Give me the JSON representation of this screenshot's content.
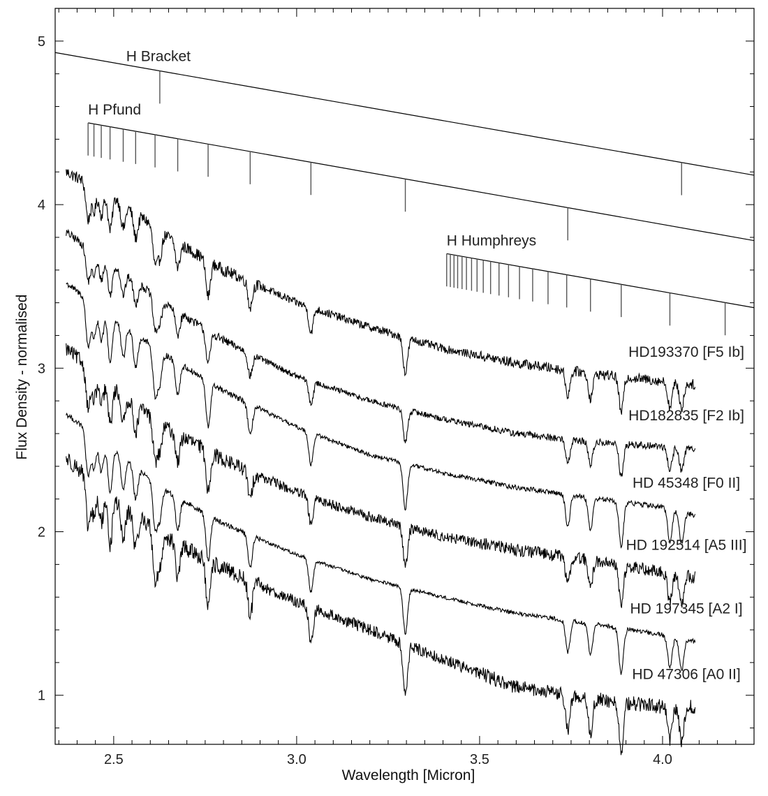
{
  "chart_data": {
    "type": "line",
    "title": "",
    "xlabel": "Wavelength [Micron]",
    "ylabel": "Flux Density - normalised",
    "xlim": [
      2.34,
      4.25
    ],
    "ylim": [
      0.7,
      5.2
    ],
    "xticks": [
      2.5,
      3.0,
      3.5,
      4.0
    ],
    "xtick_labels": [
      "2.5",
      "3.0",
      "3.5",
      "4.0"
    ],
    "yticks": [
      1,
      2,
      3,
      4,
      5
    ],
    "ytick_labels": [
      "1",
      "2",
      "3",
      "4",
      "5"
    ],
    "grid": false,
    "legend": "none",
    "line_color": "#000000",
    "hydrogen_series": [
      {
        "name": "H Bracket",
        "guide": [
          [
            2.34,
            4.93
          ],
          [
            4.25,
            4.18
          ]
        ],
        "lines": [
          2.626,
          4.052
        ],
        "tick_length": 0.2
      },
      {
        "name": "H Pfund",
        "guide": [
          [
            2.43,
            4.5
          ],
          [
            4.25,
            3.78
          ]
        ],
        "lines": [
          2.43,
          2.446,
          2.466,
          2.49,
          2.526,
          2.56,
          2.613,
          2.675,
          2.758,
          2.873,
          3.039,
          3.297,
          3.741
        ],
        "tick_length": 0.2
      },
      {
        "name": "H Humphreys",
        "guide": [
          [
            3.41,
            3.7
          ],
          [
            4.25,
            3.37
          ]
        ],
        "lines": [
          3.41,
          3.42,
          3.43,
          3.44,
          3.452,
          3.464,
          3.478,
          3.493,
          3.51,
          3.53,
          3.553,
          3.579,
          3.609,
          3.645,
          3.687,
          3.738,
          3.803,
          3.887,
          4.02,
          4.171
        ],
        "tick_length": 0.2
      }
    ],
    "absorption_lines": [
      2.43,
      2.446,
      2.466,
      2.49,
      2.526,
      2.56,
      2.613,
      2.626,
      2.675,
      2.758,
      2.873,
      3.039,
      3.297,
      3.741,
      3.803,
      3.887,
      4.02,
      4.052
    ],
    "series": [
      {
        "name": "HD193370 [F5 Ib]",
        "x": [
          2.37,
          2.5,
          2.65,
          2.8,
          3.0,
          3.2,
          3.4,
          3.6,
          3.8,
          4.0,
          4.09
        ],
        "y": [
          4.2,
          4.05,
          3.8,
          3.6,
          3.4,
          3.25,
          3.12,
          3.03,
          2.97,
          2.92,
          2.9
        ],
        "noise": 0.028,
        "depth": 0.22
      },
      {
        "name": "HD182835 [F2 Ib]",
        "x": [
          2.37,
          2.5,
          2.65,
          2.8,
          3.0,
          3.2,
          3.4,
          3.6,
          3.8,
          4.0,
          4.09
        ],
        "y": [
          3.83,
          3.63,
          3.38,
          3.17,
          2.95,
          2.8,
          2.69,
          2.6,
          2.55,
          2.52,
          2.51
        ],
        "noise": 0.02,
        "depth": 0.2
      },
      {
        "name": "HD 45348 [F0 II]",
        "x": [
          2.37,
          2.5,
          2.65,
          2.8,
          3.0,
          3.2,
          3.4,
          3.6,
          3.8,
          4.0,
          4.09
        ],
        "y": [
          3.52,
          3.3,
          3.07,
          2.86,
          2.64,
          2.47,
          2.36,
          2.27,
          2.21,
          2.15,
          2.1
        ],
        "noise": 0.014,
        "depth": 0.28
      },
      {
        "name": "HD 192514 [A5 III]",
        "x": [
          2.37,
          2.5,
          2.65,
          2.8,
          3.0,
          3.2,
          3.4,
          3.6,
          3.8,
          4.0,
          4.09
        ],
        "y": [
          3.12,
          2.88,
          2.63,
          2.44,
          2.24,
          2.09,
          1.97,
          1.89,
          1.83,
          1.75,
          1.72
        ],
        "noise": 0.035,
        "depth": 0.24
      },
      {
        "name": "HD 197345 [A2 I]",
        "x": [
          2.37,
          2.5,
          2.65,
          2.8,
          3.0,
          3.2,
          3.4,
          3.6,
          3.8,
          4.0,
          4.09
        ],
        "y": [
          2.72,
          2.5,
          2.24,
          2.05,
          1.86,
          1.71,
          1.6,
          1.5,
          1.44,
          1.37,
          1.33
        ],
        "noise": 0.012,
        "depth": 0.28
      },
      {
        "name": "HD 47306 [A0 II]",
        "x": [
          2.37,
          2.5,
          2.65,
          2.8,
          3.0,
          3.2,
          3.4,
          3.6,
          3.8,
          4.0,
          4.09
        ],
        "y": [
          2.45,
          2.2,
          1.96,
          1.77,
          1.57,
          1.4,
          1.22,
          1.05,
          0.98,
          0.93,
          0.93
        ],
        "noise": 0.04,
        "depth": 0.3
      }
    ]
  }
}
